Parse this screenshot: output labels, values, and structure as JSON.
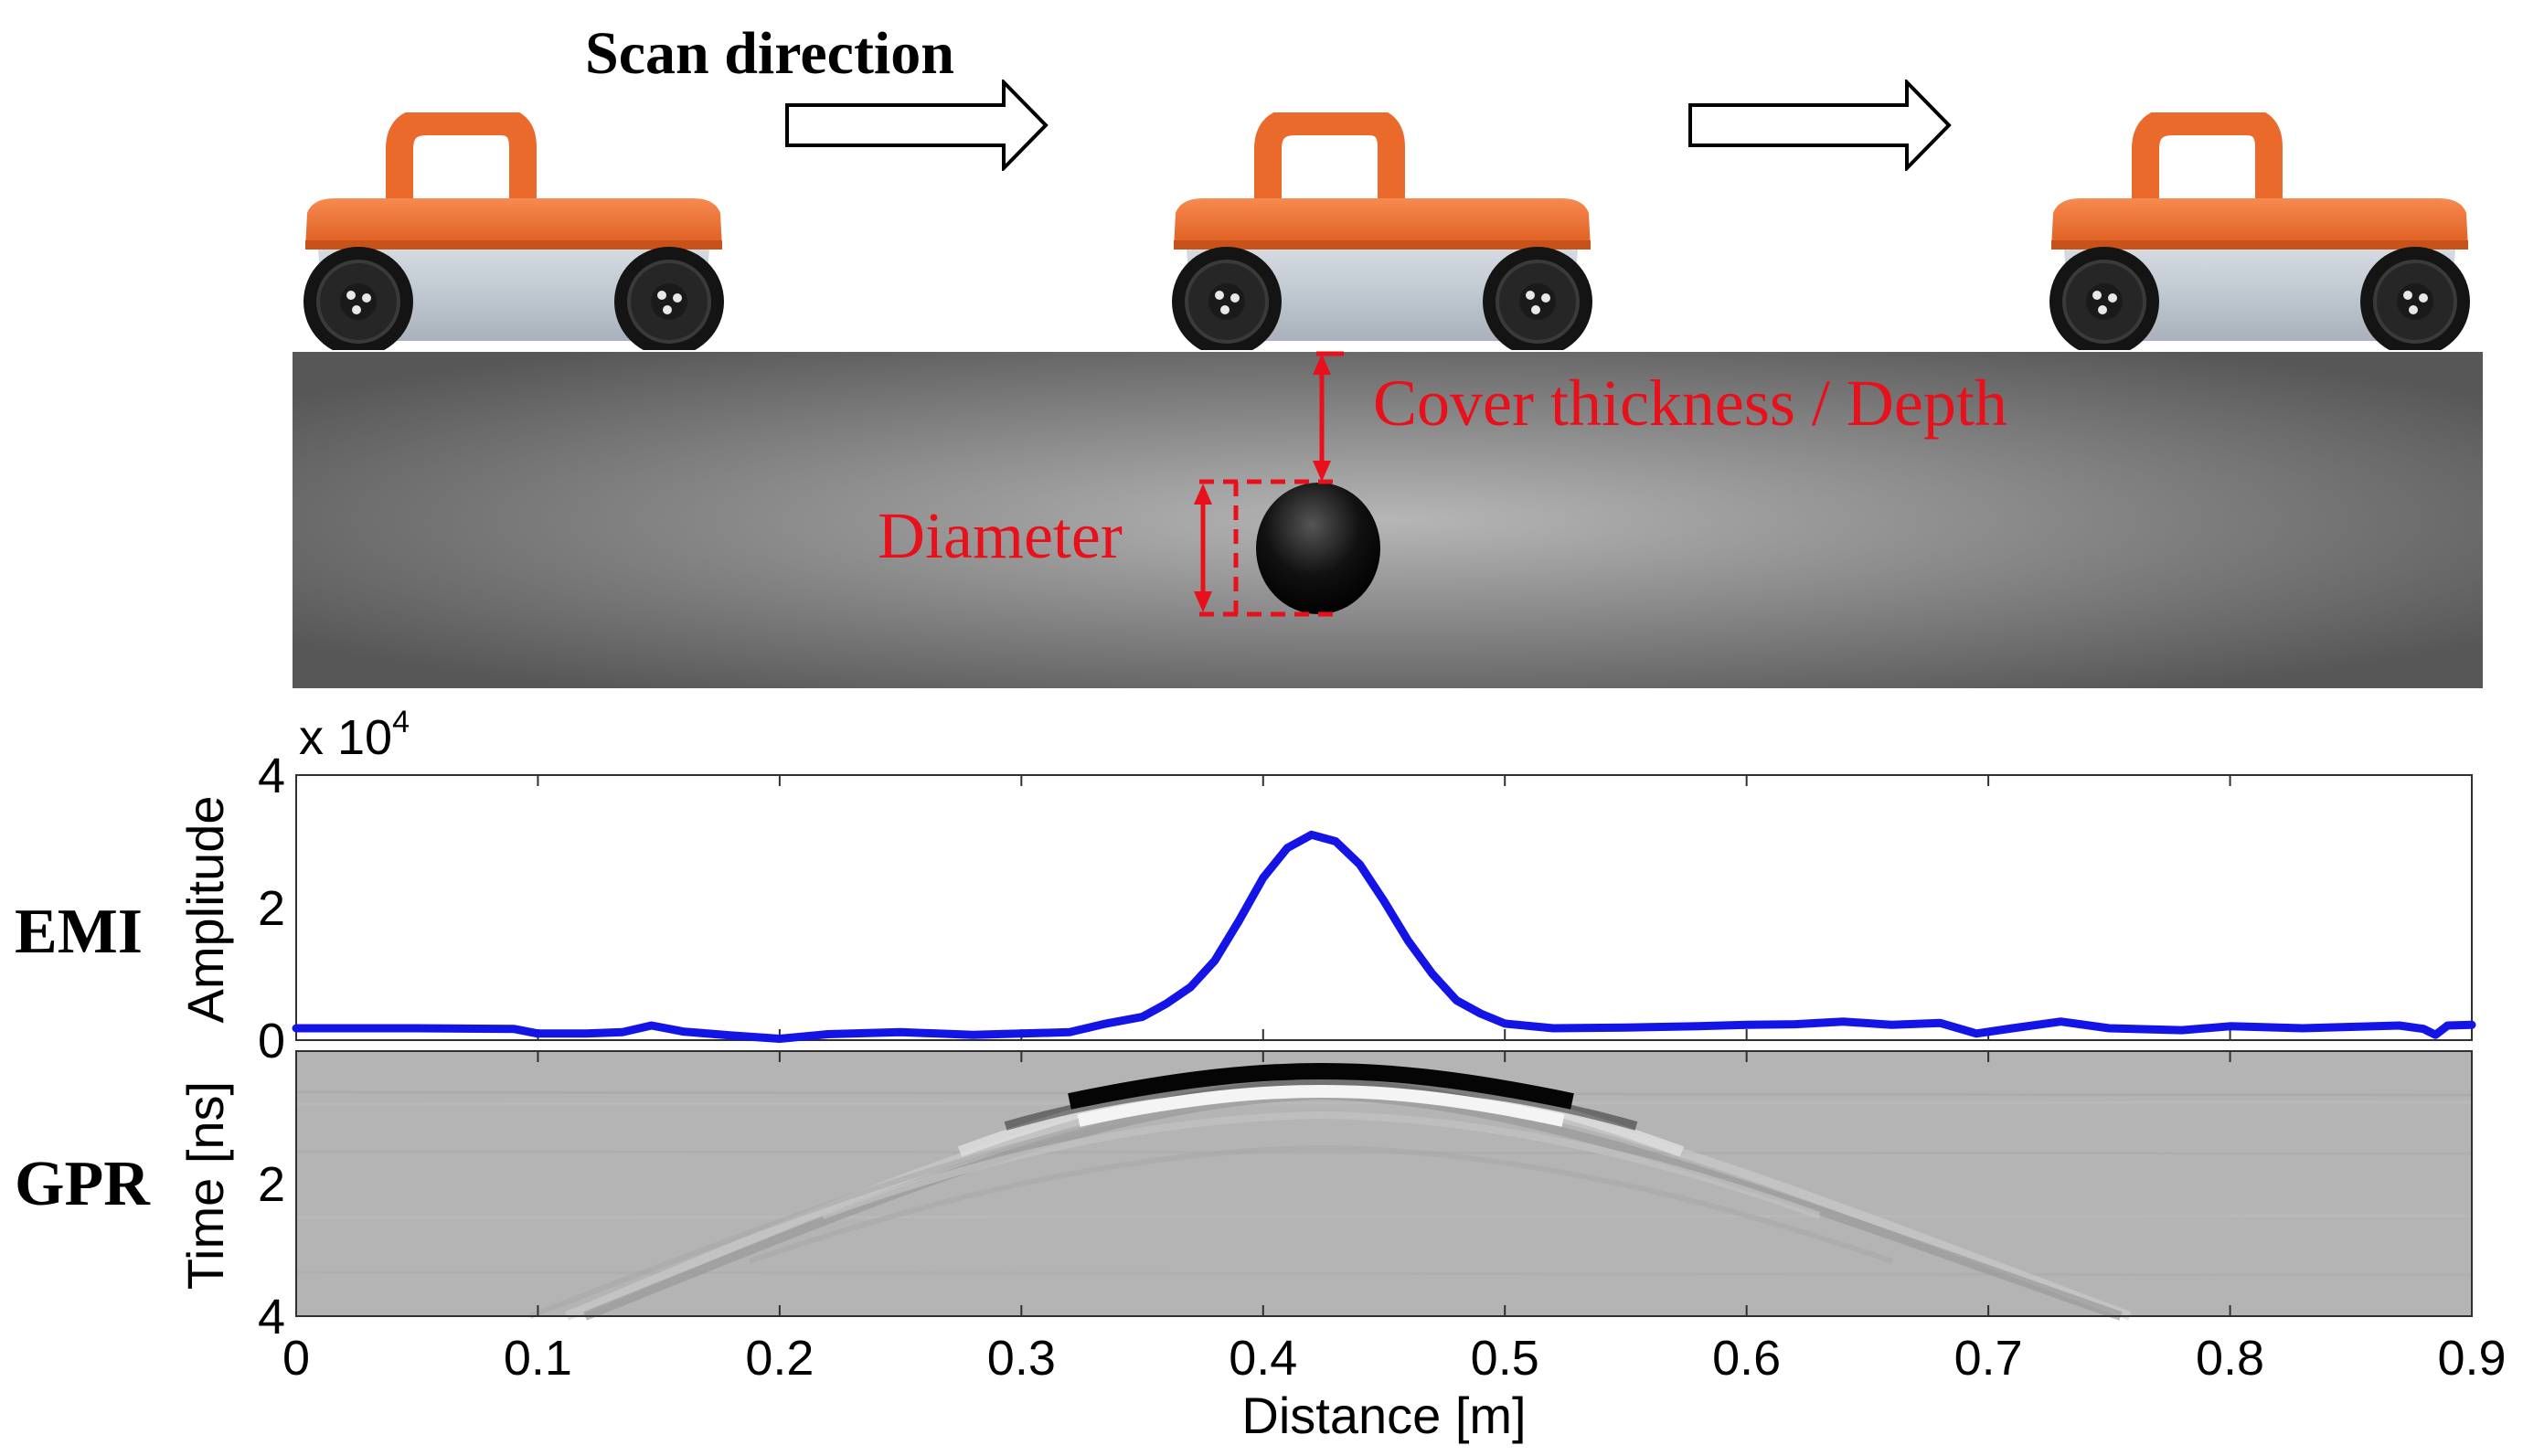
{
  "top": {
    "scan_direction_label": "Scan direction",
    "cover_label": "Cover thickness / Depth",
    "diameter_label": "Diameter"
  },
  "colors": {
    "annotation_red": "#e8101a",
    "signal_blue": "#1414e6",
    "device_orange": "#ee6a2c",
    "device_body": "#c3cbd3",
    "slab_dark": "#585858",
    "slab_light": "#b4b4b4"
  },
  "icons": [
    "gpr-cart-icon",
    "arrow-right-icon",
    "rebar-icon",
    "double-arrow-icon"
  ],
  "emi": {
    "row_label": "EMI",
    "exponent_label": "x 10",
    "exponent_power": "4",
    "ylabel": "Amplitude",
    "yticks": [
      "0",
      "2",
      "4"
    ]
  },
  "gpr": {
    "row_label": "GPR",
    "ylabel": "Time [ns]",
    "yticks": [
      "2",
      "4"
    ]
  },
  "xaxis": {
    "label": "Distance [m]",
    "ticks": [
      "0",
      "0.1",
      "0.2",
      "0.3",
      "0.4",
      "0.5",
      "0.6",
      "0.7",
      "0.8",
      "0.9"
    ]
  },
  "chart_data": {
    "type": "line",
    "xlabel": "Distance [m]",
    "ylabel": "Amplitude",
    "xlim": [
      0,
      0.9
    ],
    "ylim": [
      0,
      40000
    ],
    "series": [
      {
        "x": [
          0,
          0.05,
          0.09,
          0.1,
          0.12,
          0.135,
          0.147,
          0.16,
          0.18,
          0.2,
          0.22,
          0.25,
          0.28,
          0.3,
          0.32,
          0.335,
          0.35,
          0.36,
          0.37,
          0.38,
          0.39,
          0.4,
          0.41,
          0.42,
          0.43,
          0.44,
          0.45,
          0.46,
          0.47,
          0.48,
          0.49,
          0.5,
          0.52,
          0.55,
          0.58,
          0.6,
          0.62,
          0.64,
          0.66,
          0.68,
          0.695,
          0.71,
          0.73,
          0.75,
          0.78,
          0.8,
          0.83,
          0.85,
          0.87,
          0.88,
          0.885,
          0.89,
          0.9
        ],
        "values": [
          1800,
          1800,
          1700,
          1000,
          1000,
          1200,
          2200,
          1300,
          700,
          200,
          900,
          1200,
          800,
          1000,
          1200,
          2500,
          3500,
          5500,
          8000,
          12000,
          18000,
          24500,
          29000,
          31000,
          30000,
          26500,
          21000,
          15000,
          10000,
          6000,
          4000,
          2500,
          1800,
          1900,
          2100,
          2300,
          2400,
          2800,
          2300,
          2600,
          1000,
          1800,
          2800,
          1800,
          1500,
          2100,
          1800,
          2000,
          2200,
          1700,
          800,
          2200,
          2300
        ]
      }
    ]
  }
}
